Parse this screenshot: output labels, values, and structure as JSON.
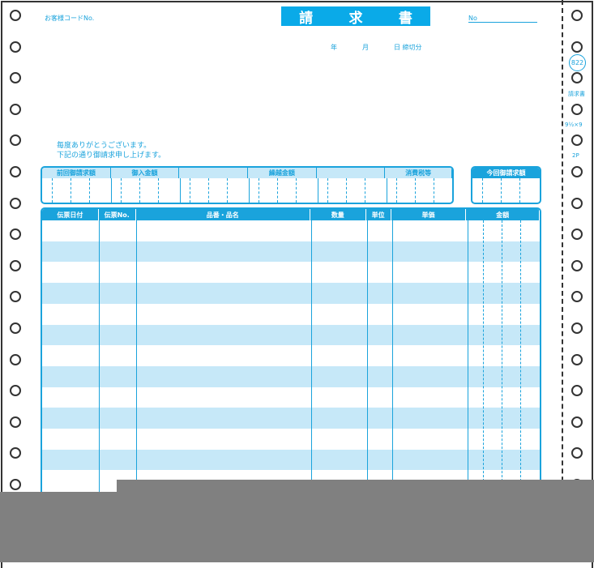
{
  "form": {
    "title_chars": [
      "請",
      "求",
      "書"
    ],
    "customer_code_label": "お客様コードNo.",
    "number_label": "No",
    "date_labels": [
      "年",
      "月",
      "日 締切分"
    ],
    "form_code": "822",
    "form_name": "請求書",
    "form_size": "9½×9",
    "form_ply": "2P",
    "greeting": [
      "毎度ありがとうございます。",
      "下記の通り御請求申し上げます。"
    ],
    "summary_columns": [
      "前回御請求額",
      "御入金額",
      "",
      "繰越金額",
      "",
      "消費税等"
    ],
    "current_total_label": "今回御請求額",
    "table_columns": [
      "伝票日付",
      "伝票No.",
      "品番・品名",
      "数量",
      "単位",
      "単価",
      "金額"
    ],
    "colors": {
      "accent": "#1aa3dc",
      "title_bg": "#0aaae8",
      "stripe": "#c6e8f8",
      "overlay": "#808080"
    }
  }
}
